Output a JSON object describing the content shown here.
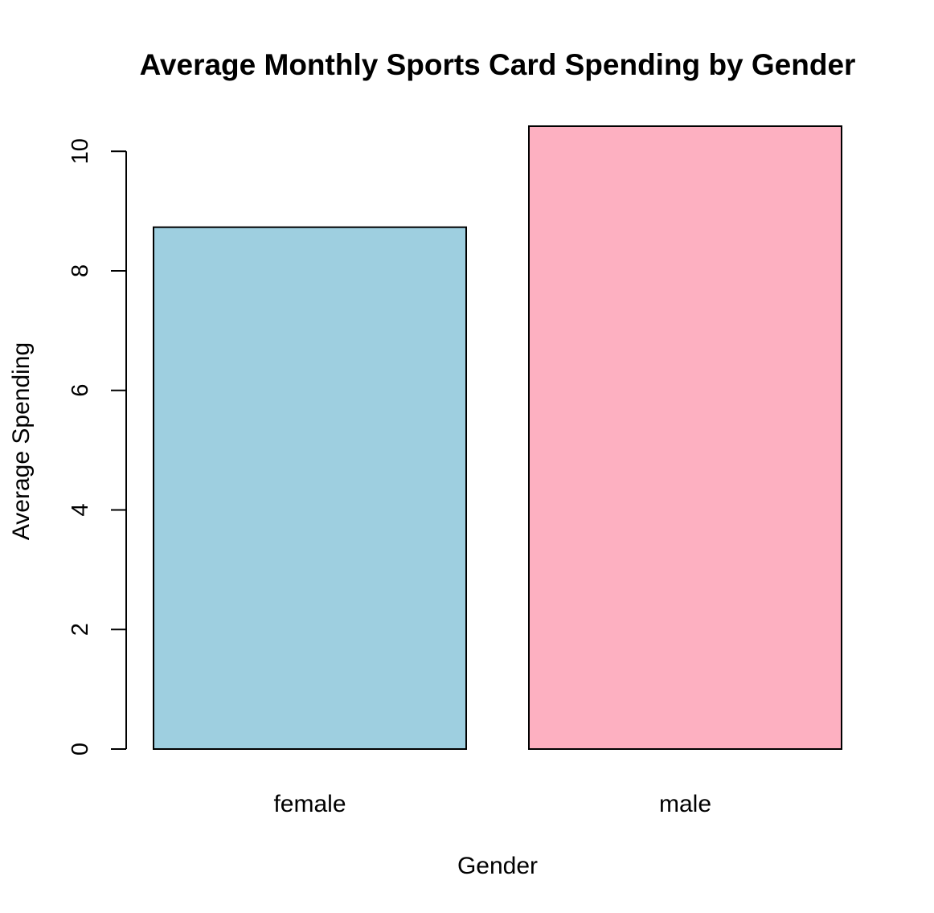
{
  "chart_data": {
    "type": "bar",
    "title": "Average Monthly Sports Card Spending by Gender",
    "xlabel": "Gender",
    "ylabel": "Average Spending",
    "categories": [
      "female",
      "male"
    ],
    "values": [
      8.73,
      10.42
    ],
    "colors": [
      "#9ECFE0",
      "#FDB0C1"
    ],
    "ylim": [
      0,
      10.42
    ],
    "yticks": [
      0,
      2,
      4,
      6,
      8,
      10
    ],
    "ytick_labels": [
      "0",
      "2",
      "4",
      "6",
      "8",
      "10"
    ],
    "grid": false,
    "legend": "none"
  }
}
